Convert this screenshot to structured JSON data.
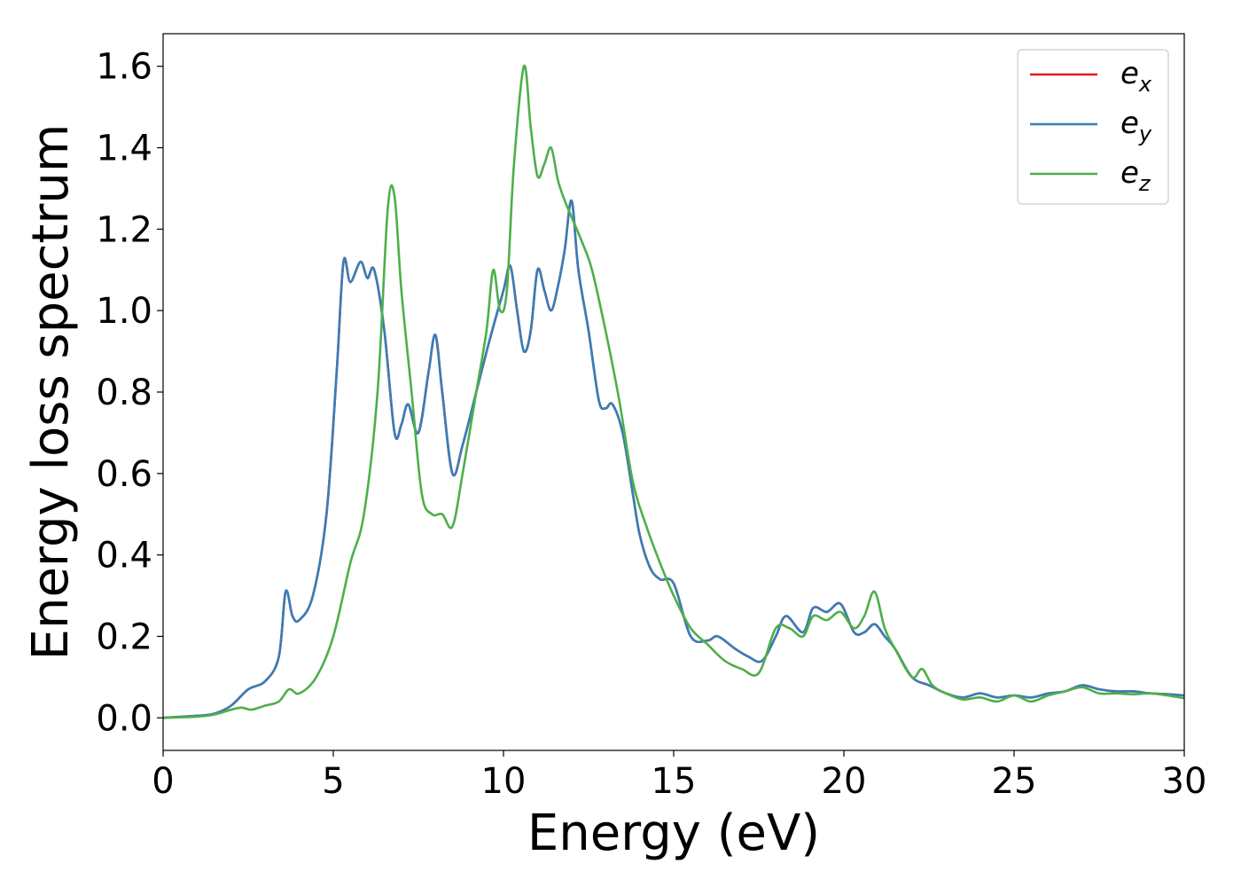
{
  "chart_data": {
    "type": "line",
    "xlabel": "Energy (eV)",
    "ylabel": "Energy loss spectrum",
    "xlim": [
      0,
      30
    ],
    "ylim": [
      -0.08,
      1.68
    ],
    "xticks": [
      0,
      5,
      10,
      15,
      20,
      25,
      30
    ],
    "xtick_labels": [
      "0",
      "5",
      "10",
      "15",
      "20",
      "25",
      "30"
    ],
    "yticks": [
      0.0,
      0.2,
      0.4,
      0.6,
      0.8,
      1.0,
      1.2,
      1.4,
      1.6
    ],
    "ytick_labels": [
      "0.0",
      "0.2",
      "0.4",
      "0.6",
      "0.8",
      "1.0",
      "1.2",
      "1.4",
      "1.6"
    ],
    "grid": false,
    "legend_position": "top-right",
    "series": [
      {
        "name": "e_x",
        "label_main": "e",
        "label_sub": "x",
        "color": "#e41a1c",
        "x": [
          0,
          1,
          1.5,
          2,
          2.5,
          3,
          3.4,
          3.6,
          3.8,
          4,
          4.4,
          4.8,
          5.1,
          5.3,
          5.5,
          5.8,
          6.0,
          6.2,
          6.5,
          6.8,
          7.0,
          7.2,
          7.5,
          7.8,
          8.0,
          8.2,
          8.5,
          8.8,
          9.2,
          9.6,
          10.0,
          10.2,
          10.4,
          10.6,
          10.8,
          11.0,
          11.2,
          11.4,
          11.6,
          11.8,
          12.0,
          12.2,
          12.5,
          12.8,
          13.0,
          13.2,
          13.5,
          13.8,
          14.0,
          14.3,
          14.6,
          15.0,
          15.5,
          16.0,
          16.3,
          16.8,
          17.2,
          17.6,
          18.0,
          18.3,
          18.8,
          19.1,
          19.5,
          19.9,
          20.3,
          20.6,
          20.9,
          21.2,
          21.5,
          22.0,
          22.5,
          23.0,
          23.5,
          24.0,
          24.5,
          25.0,
          25.5,
          26.0,
          26.5,
          27.0,
          27.5,
          28.0,
          28.5,
          29.0,
          29.5,
          30.0
        ],
        "y": [
          0.0,
          0.005,
          0.01,
          0.03,
          0.07,
          0.09,
          0.15,
          0.31,
          0.25,
          0.24,
          0.3,
          0.5,
          0.85,
          1.12,
          1.07,
          1.12,
          1.08,
          1.1,
          0.95,
          0.7,
          0.72,
          0.77,
          0.7,
          0.85,
          0.94,
          0.8,
          0.6,
          0.67,
          0.8,
          0.93,
          1.05,
          1.11,
          1.0,
          0.9,
          0.95,
          1.1,
          1.05,
          1.0,
          1.06,
          1.15,
          1.27,
          1.1,
          0.95,
          0.78,
          0.76,
          0.77,
          0.7,
          0.55,
          0.45,
          0.37,
          0.34,
          0.33,
          0.2,
          0.19,
          0.2,
          0.17,
          0.15,
          0.14,
          0.2,
          0.25,
          0.21,
          0.27,
          0.26,
          0.28,
          0.21,
          0.21,
          0.23,
          0.2,
          0.17,
          0.1,
          0.08,
          0.06,
          0.05,
          0.06,
          0.05,
          0.055,
          0.05,
          0.06,
          0.065,
          0.08,
          0.07,
          0.065,
          0.065,
          0.06,
          0.058,
          0.055
        ]
      },
      {
        "name": "e_y",
        "label_main": "e",
        "label_sub": "y",
        "color": "#377eb8",
        "x": [
          0,
          1,
          1.5,
          2,
          2.5,
          3,
          3.4,
          3.6,
          3.8,
          4,
          4.4,
          4.8,
          5.1,
          5.3,
          5.5,
          5.8,
          6.0,
          6.2,
          6.5,
          6.8,
          7.0,
          7.2,
          7.5,
          7.8,
          8.0,
          8.2,
          8.5,
          8.8,
          9.2,
          9.6,
          10.0,
          10.2,
          10.4,
          10.6,
          10.8,
          11.0,
          11.2,
          11.4,
          11.6,
          11.8,
          12.0,
          12.2,
          12.5,
          12.8,
          13.0,
          13.2,
          13.5,
          13.8,
          14.0,
          14.3,
          14.6,
          15.0,
          15.5,
          16.0,
          16.3,
          16.8,
          17.2,
          17.6,
          18.0,
          18.3,
          18.8,
          19.1,
          19.5,
          19.9,
          20.3,
          20.6,
          20.9,
          21.2,
          21.5,
          22.0,
          22.5,
          23.0,
          23.5,
          24.0,
          24.5,
          25.0,
          25.5,
          26.0,
          26.5,
          27.0,
          27.5,
          28.0,
          28.5,
          29.0,
          29.5,
          30.0
        ],
        "y": [
          0.0,
          0.005,
          0.01,
          0.03,
          0.07,
          0.09,
          0.15,
          0.31,
          0.25,
          0.24,
          0.3,
          0.5,
          0.85,
          1.12,
          1.07,
          1.12,
          1.08,
          1.1,
          0.95,
          0.7,
          0.72,
          0.77,
          0.7,
          0.85,
          0.94,
          0.8,
          0.6,
          0.67,
          0.8,
          0.93,
          1.05,
          1.11,
          1.0,
          0.9,
          0.95,
          1.1,
          1.05,
          1.0,
          1.06,
          1.15,
          1.27,
          1.1,
          0.95,
          0.78,
          0.76,
          0.77,
          0.7,
          0.55,
          0.45,
          0.37,
          0.34,
          0.33,
          0.2,
          0.19,
          0.2,
          0.17,
          0.15,
          0.14,
          0.2,
          0.25,
          0.21,
          0.27,
          0.26,
          0.28,
          0.21,
          0.21,
          0.23,
          0.2,
          0.17,
          0.1,
          0.08,
          0.06,
          0.05,
          0.06,
          0.05,
          0.055,
          0.05,
          0.06,
          0.065,
          0.08,
          0.07,
          0.065,
          0.065,
          0.06,
          0.058,
          0.055
        ]
      },
      {
        "name": "e_z",
        "label_main": "e",
        "label_sub": "z",
        "color": "#4daf4a",
        "x": [
          0,
          1,
          1.5,
          2,
          2.3,
          2.6,
          3,
          3.4,
          3.7,
          4.0,
          4.5,
          5.0,
          5.5,
          5.9,
          6.3,
          6.6,
          6.8,
          7.0,
          7.3,
          7.6,
          7.9,
          8.2,
          8.5,
          8.8,
          9.2,
          9.5,
          9.7,
          9.9,
          10.1,
          10.3,
          10.6,
          10.8,
          11.0,
          11.2,
          11.4,
          11.6,
          11.8,
          12.0,
          12.3,
          12.6,
          13.0,
          13.4,
          13.8,
          14.2,
          14.6,
          15.0,
          15.5,
          16.0,
          16.5,
          17.0,
          17.5,
          18.0,
          18.4,
          18.8,
          19.1,
          19.5,
          19.9,
          20.3,
          20.6,
          20.9,
          21.2,
          21.5,
          22.0,
          22.3,
          22.6,
          23.0,
          23.5,
          24.0,
          24.5,
          25.0,
          25.5,
          26.0,
          26.5,
          27.0,
          27.5,
          28.0,
          28.5,
          29.0,
          29.5,
          30.0
        ],
        "y": [
          0.0,
          0.003,
          0.008,
          0.02,
          0.025,
          0.02,
          0.03,
          0.04,
          0.07,
          0.06,
          0.1,
          0.2,
          0.38,
          0.5,
          0.8,
          1.25,
          1.28,
          1.05,
          0.8,
          0.55,
          0.5,
          0.5,
          0.47,
          0.6,
          0.8,
          0.95,
          1.1,
          1.0,
          1.05,
          1.35,
          1.6,
          1.45,
          1.33,
          1.36,
          1.4,
          1.32,
          1.27,
          1.23,
          1.17,
          1.1,
          0.95,
          0.78,
          0.58,
          0.47,
          0.38,
          0.3,
          0.22,
          0.18,
          0.14,
          0.12,
          0.11,
          0.22,
          0.22,
          0.2,
          0.25,
          0.24,
          0.26,
          0.22,
          0.25,
          0.31,
          0.22,
          0.17,
          0.1,
          0.12,
          0.08,
          0.06,
          0.045,
          0.05,
          0.04,
          0.055,
          0.04,
          0.055,
          0.065,
          0.075,
          0.06,
          0.06,
          0.058,
          0.06,
          0.055,
          0.048
        ]
      }
    ]
  }
}
